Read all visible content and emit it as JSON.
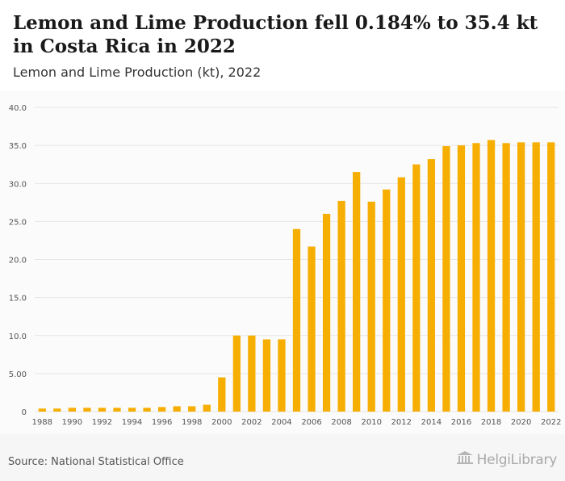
{
  "header": {
    "title": "Lemon and Lime Production fell 0.184% to 35.4 kt in Costa Rica in 2022",
    "subtitle": "Lemon and Lime Production (kt), 2022"
  },
  "footer": {
    "source": "Source: National Statistical Office",
    "logo_text": "HelgiLibrary"
  },
  "colors": {
    "bar": "#f6ae03",
    "grid": "#e6e6e6",
    "axis_text": "#555555"
  },
  "chart_data": {
    "type": "bar",
    "title": "",
    "xlabel": "",
    "ylabel": "",
    "ylim": [
      0,
      40
    ],
    "yticks": [
      "0",
      "5.00",
      "10.0",
      "15.0",
      "20.0",
      "25.0",
      "30.0",
      "35.0",
      "40.0"
    ],
    "ytick_values": [
      0,
      5,
      10,
      15,
      20,
      25,
      30,
      35,
      40
    ],
    "categories": [
      "1988",
      "1989",
      "1990",
      "1991",
      "1992",
      "1993",
      "1994",
      "1995",
      "1996",
      "1997",
      "1998",
      "1999",
      "2000",
      "2001",
      "2002",
      "2003",
      "2004",
      "2005",
      "2006",
      "2007",
      "2008",
      "2009",
      "2010",
      "2011",
      "2012",
      "2013",
      "2014",
      "2015",
      "2016",
      "2017",
      "2018",
      "2019",
      "2020",
      "2021",
      "2022"
    ],
    "xtick_labels": [
      "1988",
      "1990",
      "1992",
      "1994",
      "1996",
      "1998",
      "2000",
      "2002",
      "2004",
      "2006",
      "2008",
      "2010",
      "2012",
      "2014",
      "2016",
      "2018",
      "2020",
      "2022"
    ],
    "values": [
      0.4,
      0.4,
      0.5,
      0.5,
      0.5,
      0.5,
      0.5,
      0.5,
      0.6,
      0.7,
      0.7,
      0.9,
      4.5,
      10.0,
      10.0,
      9.5,
      9.5,
      24.0,
      21.7,
      26.0,
      27.7,
      31.5,
      27.6,
      29.2,
      30.8,
      32.5,
      33.2,
      34.9,
      35.0,
      35.3,
      35.7,
      35.3,
      35.4,
      35.4,
      35.4
    ],
    "grid": true,
    "legend": "none"
  }
}
